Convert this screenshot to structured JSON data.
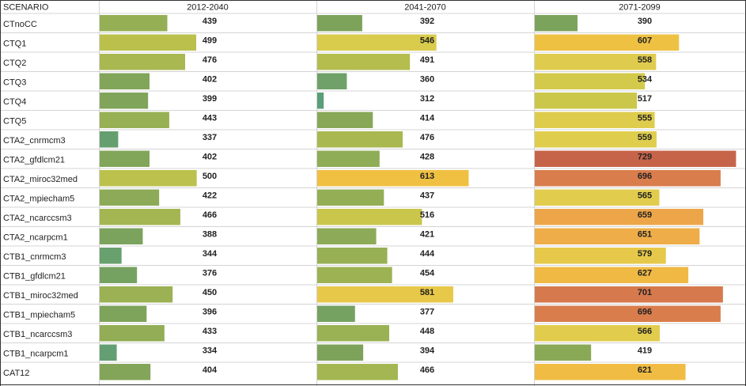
{
  "table": {
    "header": [
      "SCENARIO",
      "2012-2040",
      "2041-2070",
      "2071-2099"
    ],
    "rows": [
      [
        "CTnoCC",
        439,
        392,
        390
      ],
      [
        "CTQ1",
        499,
        546,
        607
      ],
      [
        "CTQ2",
        476,
        491,
        558
      ],
      [
        "CTQ3",
        402,
        360,
        534
      ],
      [
        "CTQ4",
        399,
        312,
        517
      ],
      [
        "CTQ5",
        443,
        414,
        555
      ],
      [
        "CTA2_cnrmcm3",
        337,
        476,
        559
      ],
      [
        "CTA2_gfdlcm21",
        402,
        428,
        729
      ],
      [
        "CTA2_miroc32med",
        500,
        613,
        696
      ],
      [
        "CTA2_mpiecham5",
        422,
        437,
        565
      ],
      [
        "CTA2_ncarccsm3",
        466,
        516,
        659
      ],
      [
        "CTA2_ncarpcm1",
        388,
        421,
        651
      ],
      [
        "CTB1_cnrmcm3",
        344,
        444,
        579
      ],
      [
        "CTB1_gfdlcm21",
        376,
        454,
        627
      ],
      [
        "CTB1_miroc32med",
        450,
        581,
        701
      ],
      [
        "CTB1_mpiecham5",
        396,
        377,
        696
      ],
      [
        "CTB1_ncarccsm3",
        433,
        448,
        566
      ],
      [
        "CTB1_ncarpcm1",
        334,
        394,
        419
      ],
      [
        "CAT12",
        404,
        466,
        621
      ]
    ]
  }
}
